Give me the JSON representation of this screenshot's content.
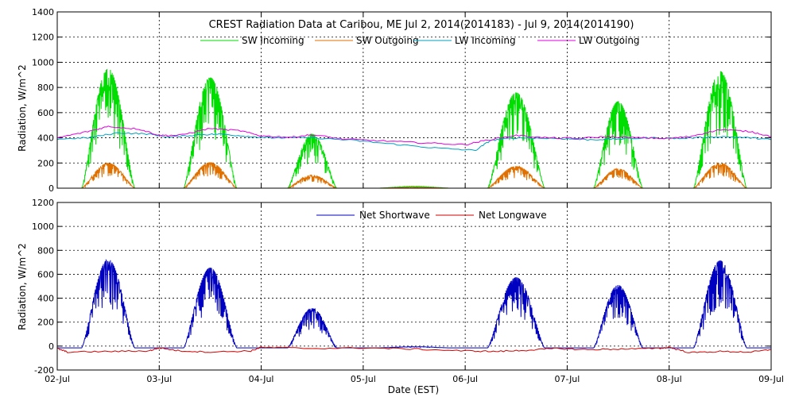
{
  "chart_data": [
    {
      "type": "line",
      "title": "CREST Radiation Data at Caribou, ME   Jul  2, 2014(2014183) - Jul  9, 2014(2014190)",
      "xlabel": "",
      "ylabel": "Radiation, W/m^2",
      "ylim": [
        0,
        1400
      ],
      "yticks": [
        0,
        200,
        400,
        600,
        800,
        1000,
        1200,
        1400
      ],
      "x_categories": [
        "02-Jul",
        "03-Jul",
        "04-Jul",
        "05-Jul",
        "06-Jul",
        "07-Jul",
        "08-Jul",
        "09-Jul"
      ],
      "xlim_days": [
        2,
        9
      ],
      "grid": true,
      "legend_position": "top",
      "series": [
        {
          "name": "SW Incoming",
          "color": "#00dd00",
          "day_peaks": [
            950,
            880,
            430,
            15,
            760,
            690,
            930
          ],
          "day_width": [
            0.26,
            0.26,
            0.24,
            0.35,
            0.28,
            0.24,
            0.26
          ]
        },
        {
          "name": "SW Outgoing",
          "color": "#e07000",
          "day_peaks": [
            200,
            205,
            105,
            8,
            175,
            155,
            200
          ],
          "day_width": [
            0.26,
            0.26,
            0.24,
            0.35,
            0.28,
            0.24,
            0.26
          ]
        },
        {
          "name": "LW Incoming",
          "color": "#00a0c0",
          "points": [
            [
              2.0,
              390
            ],
            [
              2.3,
              400
            ],
            [
              2.6,
              440
            ],
            [
              2.9,
              430
            ],
            [
              3.1,
              405
            ],
            [
              3.4,
              425
            ],
            [
              3.6,
              430
            ],
            [
              3.9,
              410
            ],
            [
              4.1,
              400
            ],
            [
              4.5,
              400
            ],
            [
              4.9,
              380
            ],
            [
              5.3,
              350
            ],
            [
              5.7,
              320
            ],
            [
              6.1,
              300
            ],
            [
              6.25,
              380
            ],
            [
              6.5,
              400
            ],
            [
              6.9,
              395
            ],
            [
              7.2,
              385
            ],
            [
              7.5,
              390
            ],
            [
              7.8,
              400
            ],
            [
              8.1,
              395
            ],
            [
              8.5,
              410
            ],
            [
              8.8,
              400
            ],
            [
              9.0,
              385
            ]
          ]
        },
        {
          "name": "LW Outgoing",
          "color": "#e000e0",
          "points": [
            [
              2.0,
              400
            ],
            [
              2.3,
              450
            ],
            [
              2.5,
              490
            ],
            [
              2.8,
              470
            ],
            [
              3.0,
              420
            ],
            [
              3.2,
              420
            ],
            [
              3.5,
              475
            ],
            [
              3.8,
              455
            ],
            [
              4.0,
              415
            ],
            [
              4.3,
              405
            ],
            [
              4.5,
              425
            ],
            [
              4.8,
              390
            ],
            [
              5.2,
              375
            ],
            [
              5.6,
              360
            ],
            [
              6.0,
              345
            ],
            [
              6.2,
              380
            ],
            [
              6.5,
              420
            ],
            [
              6.8,
              400
            ],
            [
              7.1,
              395
            ],
            [
              7.4,
              410
            ],
            [
              7.7,
              400
            ],
            [
              8.0,
              395
            ],
            [
              8.2,
              410
            ],
            [
              8.5,
              465
            ],
            [
              8.8,
              450
            ],
            [
              9.0,
              410
            ]
          ]
        }
      ]
    },
    {
      "type": "line",
      "xlabel": "Date (EST)",
      "ylabel": "Radiation, W/m^2",
      "ylim": [
        -200,
        1200
      ],
      "yticks": [
        -200,
        0,
        200,
        400,
        600,
        800,
        1000,
        1200
      ],
      "x_categories": [
        "02-Jul",
        "03-Jul",
        "04-Jul",
        "05-Jul",
        "06-Jul",
        "07-Jul",
        "08-Jul",
        "09-Jul"
      ],
      "xlim_days": [
        2,
        9
      ],
      "grid": true,
      "legend_position": "top",
      "series": [
        {
          "name": "Net Shortwave",
          "color": "#0000c0",
          "day_peaks": [
            740,
            670,
            330,
            10,
            590,
            525,
            730
          ],
          "day_width": [
            0.26,
            0.26,
            0.24,
            0.35,
            0.28,
            0.24,
            0.26
          ],
          "baseline": -15
        },
        {
          "name": "Net Longwave",
          "color": "#d00000",
          "points": [
            [
              2.0,
              -20
            ],
            [
              2.1,
              -50
            ],
            [
              2.5,
              -45
            ],
            [
              2.9,
              -40
            ],
            [
              3.0,
              -15
            ],
            [
              3.2,
              -40
            ],
            [
              3.5,
              -50
            ],
            [
              3.9,
              -40
            ],
            [
              4.0,
              -10
            ],
            [
              4.5,
              -20
            ],
            [
              5.0,
              -15
            ],
            [
              5.5,
              -25
            ],
            [
              6.0,
              -40
            ],
            [
              6.3,
              -45
            ],
            [
              6.6,
              -35
            ],
            [
              6.9,
              -20
            ],
            [
              7.2,
              -30
            ],
            [
              7.5,
              -25
            ],
            [
              7.9,
              -20
            ],
            [
              8.0,
              -10
            ],
            [
              8.2,
              -55
            ],
            [
              8.5,
              -45
            ],
            [
              8.8,
              -50
            ],
            [
              9.0,
              -30
            ]
          ]
        }
      ]
    }
  ]
}
